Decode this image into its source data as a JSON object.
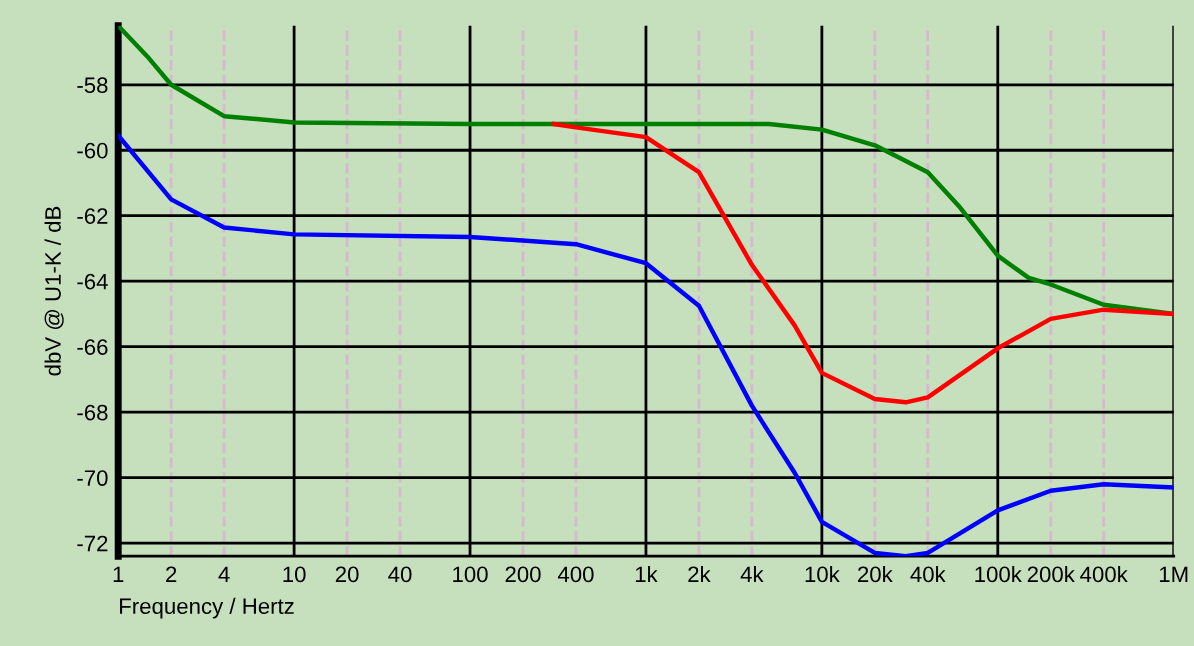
{
  "chart_data": {
    "type": "line",
    "xlabel": "Frequency / Hertz",
    "ylabel": "dbV @ U1-K / dB",
    "log": "x",
    "grid": true,
    "marker": "none",
    "line_style": "solid",
    "xlim": [
      1,
      1000000
    ],
    "ylim": [
      -72.4,
      -56.2
    ],
    "xticks": [
      1,
      2,
      4,
      10,
      20,
      40,
      100,
      200,
      400,
      {
        "value": 1000,
        "label": "1k"
      },
      {
        "value": 2000,
        "label": "2k"
      },
      {
        "value": 4000,
        "label": "4k"
      },
      {
        "value": 10000,
        "label": "10k"
      },
      {
        "value": 20000,
        "label": "20k"
      },
      {
        "value": 40000,
        "label": "40k"
      },
      {
        "value": 100000,
        "label": "100k"
      },
      {
        "value": 200000,
        "label": "200k"
      },
      {
        "value": 400000,
        "label": "400k"
      },
      {
        "value": 1000000,
        "label": "1M"
      }
    ],
    "yticks": [
      -72,
      -70,
      -68,
      -66,
      -64,
      -62,
      -60,
      -58
    ],
    "series": [
      {
        "color": "#008000",
        "x": [
          1,
          1.5,
          2,
          4,
          10,
          100,
          1000,
          5000,
          10000,
          20000,
          40000,
          60000,
          100000,
          150000,
          200000,
          400000,
          1000000
        ],
        "values": [
          -56.2,
          -57.2,
          -58.0,
          -58.96,
          -59.15,
          -59.2,
          -59.2,
          -59.2,
          -59.37,
          -59.85,
          -60.67,
          -61.7,
          -63.22,
          -63.9,
          -64.1,
          -64.72,
          -65.0
        ]
      },
      {
        "color": "#ff0000",
        "x": [
          300,
          400,
          1000,
          2000,
          4000,
          7000,
          10000,
          20000,
          30000,
          40000,
          100000,
          200000,
          400000,
          1000000
        ],
        "values": [
          -59.2,
          -59.3,
          -59.6,
          -60.67,
          -63.5,
          -65.35,
          -66.8,
          -67.6,
          -67.7,
          -67.55,
          -66.05,
          -65.15,
          -64.87,
          -65.0
        ]
      },
      {
        "color": "#0000ff",
        "x": [
          1,
          2,
          4,
          10,
          100,
          400,
          1000,
          2000,
          4000,
          7000,
          10000,
          20000,
          30000,
          40000,
          100000,
          200000,
          400000,
          1000000
        ],
        "values": [
          -59.55,
          -61.5,
          -62.36,
          -62.57,
          -62.65,
          -62.87,
          -63.45,
          -64.75,
          -67.8,
          -69.85,
          -71.35,
          -72.3,
          -72.4,
          -72.3,
          -71.0,
          -70.4,
          -70.2,
          -70.3
        ]
      }
    ]
  }
}
